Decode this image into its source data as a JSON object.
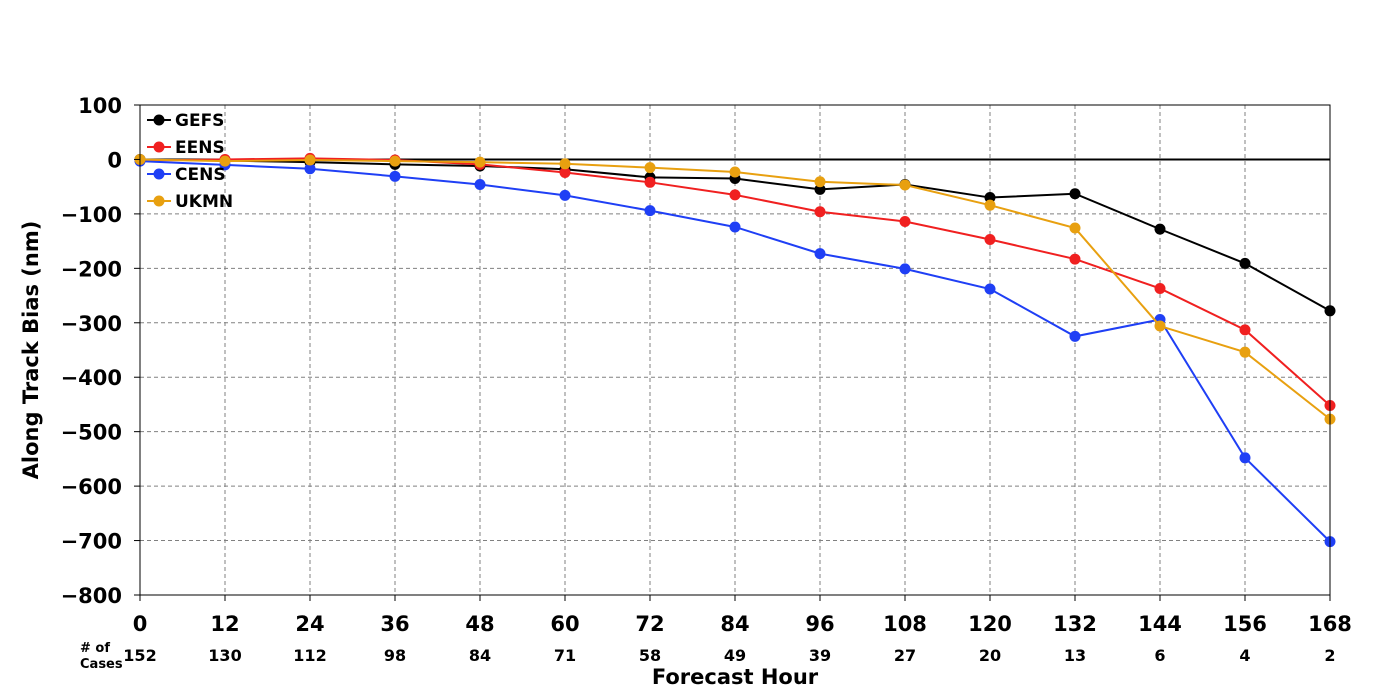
{
  "chart_data": {
    "type": "line",
    "xlabel": "Forecast Hour",
    "ylabel": "Along Track Bias (nm)",
    "x": [
      0,
      12,
      24,
      36,
      48,
      60,
      72,
      84,
      96,
      108,
      120,
      132,
      144,
      156,
      168
    ],
    "xlim": [
      0,
      168
    ],
    "ylim": [
      -800,
      100
    ],
    "yticks": [
      100,
      0,
      -100,
      -200,
      -300,
      -400,
      -500,
      -600,
      -700,
      -800
    ],
    "grid": true,
    "legend_position": "top-left",
    "cases_label": [
      "# of",
      "Cases"
    ],
    "cases": [
      152,
      130,
      112,
      98,
      84,
      71,
      58,
      49,
      39,
      27,
      20,
      13,
      6,
      4,
      2
    ],
    "series": [
      {
        "name": "GEFS",
        "color": "#000000",
        "values": [
          0,
          -2,
          -5,
          -9,
          -12,
          -18,
          -33,
          -35,
          -55,
          -46,
          -70,
          -63,
          -128,
          -191,
          -278
        ]
      },
      {
        "name": "EENS",
        "color": "#f02020",
        "values": [
          -2,
          0,
          2,
          -1,
          -9,
          -24,
          -42,
          -65,
          -96,
          -114,
          -147,
          -183,
          -237,
          -313,
          -452
        ]
      },
      {
        "name": "CENS",
        "color": "#1f3ff5",
        "values": [
          -3,
          -10,
          -17,
          -31,
          -46,
          -66,
          -94,
          -124,
          -173,
          -201,
          -238,
          -325,
          -294,
          -548,
          -702
        ]
      },
      {
        "name": "UKMN",
        "color": "#e8a010",
        "values": [
          0,
          -3,
          -1,
          -3,
          -5,
          -8,
          -15,
          -23,
          -41,
          -47,
          -84,
          -126,
          -306,
          -354,
          -477
        ]
      }
    ]
  }
}
